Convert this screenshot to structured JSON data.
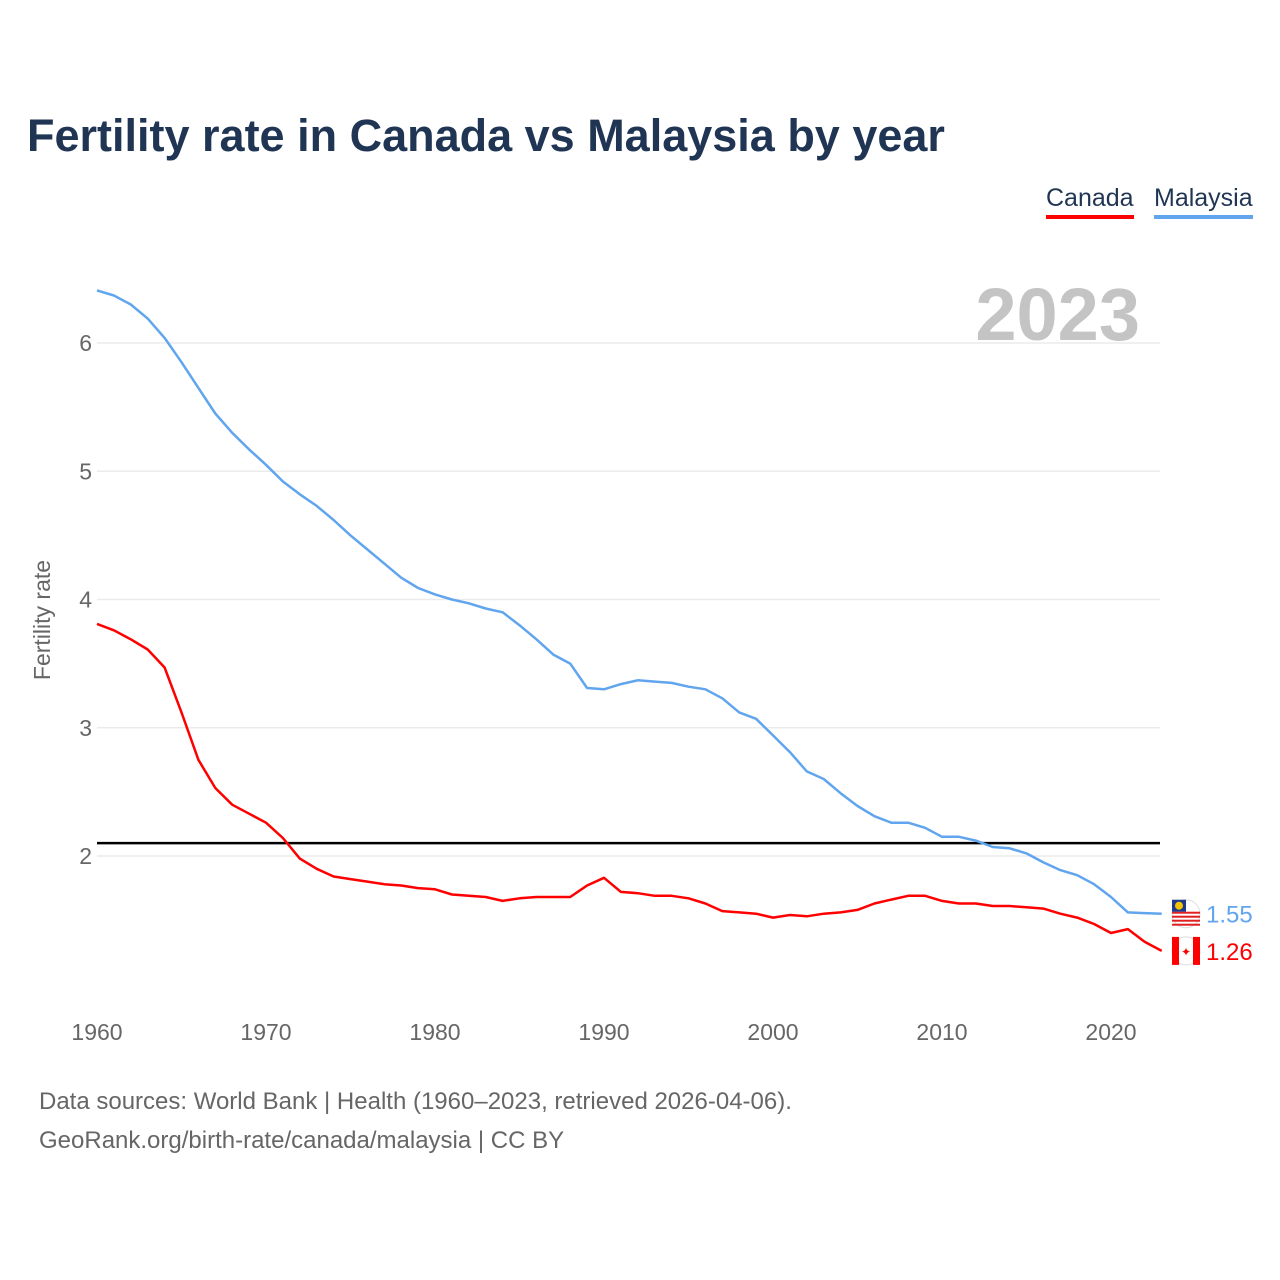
{
  "chart_data": {
    "type": "line",
    "title": "Fertility rate in Canada vs Malaysia by year",
    "xlabel": "",
    "ylabel": "Fertility rate",
    "xlim": [
      1960,
      2023
    ],
    "ylim": [
      1.0,
      6.5
    ],
    "x_ticks": [
      1960,
      1970,
      1980,
      1990,
      2000,
      2010,
      2020
    ],
    "y_ticks": [
      2,
      3,
      4,
      5,
      6
    ],
    "grid": true,
    "legend": "top-right",
    "year_watermark": "2023",
    "reference_line": 2.1,
    "x": [
      1960,
      1961,
      1962,
      1963,
      1964,
      1965,
      1966,
      1967,
      1968,
      1969,
      1970,
      1971,
      1972,
      1973,
      1974,
      1975,
      1976,
      1977,
      1978,
      1979,
      1980,
      1981,
      1982,
      1983,
      1984,
      1985,
      1986,
      1987,
      1988,
      1989,
      1990,
      1991,
      1992,
      1993,
      1994,
      1995,
      1996,
      1997,
      1998,
      1999,
      2000,
      2001,
      2002,
      2003,
      2004,
      2005,
      2006,
      2007,
      2008,
      2009,
      2010,
      2011,
      2012,
      2013,
      2014,
      2015,
      2016,
      2017,
      2018,
      2019,
      2020,
      2021,
      2022,
      2023
    ],
    "series": [
      {
        "name": "Canada",
        "color": "#ff0000",
        "end_label": "1.26",
        "values": [
          3.81,
          3.76,
          3.69,
          3.61,
          3.47,
          3.12,
          2.75,
          2.53,
          2.4,
          2.33,
          2.26,
          2.14,
          1.98,
          1.9,
          1.84,
          1.82,
          1.8,
          1.78,
          1.77,
          1.75,
          1.74,
          1.7,
          1.69,
          1.68,
          1.65,
          1.67,
          1.68,
          1.68,
          1.68,
          1.77,
          1.83,
          1.72,
          1.71,
          1.69,
          1.69,
          1.67,
          1.63,
          1.57,
          1.56,
          1.55,
          1.52,
          1.54,
          1.53,
          1.55,
          1.56,
          1.58,
          1.63,
          1.66,
          1.69,
          1.69,
          1.65,
          1.63,
          1.63,
          1.61,
          1.61,
          1.6,
          1.59,
          1.55,
          1.52,
          1.47,
          1.4,
          1.43,
          1.33,
          1.26
        ]
      },
      {
        "name": "Malaysia",
        "color": "#60a5ee",
        "end_label": "1.55",
        "values": [
          6.41,
          6.37,
          6.3,
          6.19,
          6.04,
          5.85,
          5.65,
          5.45,
          5.3,
          5.17,
          5.05,
          4.92,
          4.82,
          4.73,
          4.62,
          4.5,
          4.39,
          4.28,
          4.17,
          4.09,
          4.04,
          4.0,
          3.97,
          3.93,
          3.9,
          3.8,
          3.69,
          3.57,
          3.5,
          3.31,
          3.3,
          3.34,
          3.37,
          3.36,
          3.35,
          3.32,
          3.3,
          3.23,
          3.12,
          3.07,
          2.94,
          2.81,
          2.66,
          2.6,
          2.49,
          2.39,
          2.31,
          2.26,
          2.26,
          2.22,
          2.15,
          2.15,
          2.12,
          2.07,
          2.06,
          2.02,
          1.95,
          1.89,
          1.85,
          1.78,
          1.68,
          1.56,
          1.555,
          1.55
        ]
      }
    ]
  },
  "footer": {
    "line1": "Data sources: World Bank | Health (1960–2023, retrieved 2026-04-06).",
    "line2": "GeoRank.org/birth-rate/canada/malaysia | CC BY"
  }
}
